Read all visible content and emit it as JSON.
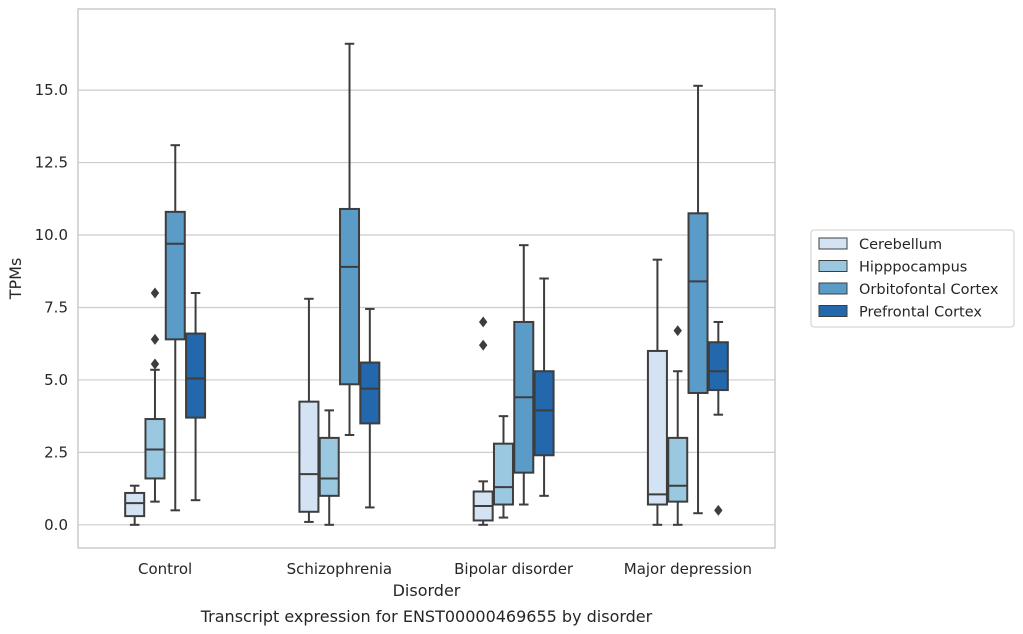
{
  "chart_data": {
    "type": "box",
    "caption": "Transcript expression for ENST00000469655 by disorder",
    "xlabel": "Disorder",
    "ylabel": "TPMs",
    "ylim": [
      -0.8,
      17.8
    ],
    "yticks": [
      0.0,
      2.5,
      5.0,
      7.5,
      10.0,
      12.5,
      15.0
    ],
    "ytick_labels": [
      "0.0",
      "2.5",
      "5.0",
      "7.5",
      "10.0",
      "12.5",
      "15.0"
    ],
    "grid": "horizontal",
    "legend_position": "right",
    "categories": [
      "Control",
      "Schizophrenia",
      "Bipolar disorder",
      "Major depression"
    ],
    "series": [
      {
        "name": "Cerebellum",
        "color": "#d3e3f3",
        "boxes": [
          {
            "whislo": 0.0,
            "q1": 0.3,
            "med": 0.75,
            "q3": 1.1,
            "whishi": 1.35,
            "fliers": []
          },
          {
            "whislo": 0.1,
            "q1": 0.45,
            "med": 1.75,
            "q3": 4.25,
            "whishi": 7.8,
            "fliers": []
          },
          {
            "whislo": 0.0,
            "q1": 0.15,
            "med": 0.65,
            "q3": 1.15,
            "whishi": 1.5,
            "fliers": [
              6.2,
              7.0
            ]
          },
          {
            "whislo": 0.0,
            "q1": 0.7,
            "med": 1.05,
            "q3": 6.0,
            "whishi": 9.15,
            "fliers": []
          }
        ]
      },
      {
        "name": "Hipppocampus",
        "color": "#9ac8e0",
        "boxes": [
          {
            "whislo": 0.8,
            "q1": 1.6,
            "med": 2.6,
            "q3": 3.65,
            "whishi": 5.35,
            "fliers": [
              5.55,
              6.4,
              8.0
            ]
          },
          {
            "whislo": 0.0,
            "q1": 1.0,
            "med": 1.6,
            "q3": 3.0,
            "whishi": 3.95,
            "fliers": []
          },
          {
            "whislo": 0.25,
            "q1": 0.7,
            "med": 1.3,
            "q3": 2.8,
            "whishi": 3.75,
            "fliers": []
          },
          {
            "whislo": 0.0,
            "q1": 0.8,
            "med": 1.35,
            "q3": 3.0,
            "whishi": 5.3,
            "fliers": [
              6.7
            ]
          }
        ]
      },
      {
        "name": "Orbitofontal Cortex",
        "color": "#5a9bc8",
        "boxes": [
          {
            "whislo": 0.5,
            "q1": 6.4,
            "med": 9.7,
            "q3": 10.8,
            "whishi": 13.1,
            "fliers": []
          },
          {
            "whislo": 3.1,
            "q1": 4.85,
            "med": 8.9,
            "q3": 10.9,
            "whishi": 16.6,
            "fliers": []
          },
          {
            "whislo": 0.7,
            "q1": 1.8,
            "med": 4.4,
            "q3": 7.0,
            "whishi": 9.65,
            "fliers": []
          },
          {
            "whislo": 0.4,
            "q1": 4.55,
            "med": 8.4,
            "q3": 10.75,
            "whishi": 15.15,
            "fliers": []
          }
        ]
      },
      {
        "name": "Prefrontal Cortex",
        "color": "#2367ad",
        "boxes": [
          {
            "whislo": 0.85,
            "q1": 3.7,
            "med": 5.05,
            "q3": 6.6,
            "whishi": 8.0,
            "fliers": []
          },
          {
            "whislo": 0.6,
            "q1": 3.5,
            "med": 4.7,
            "q3": 5.6,
            "whishi": 7.45,
            "fliers": []
          },
          {
            "whislo": 1.0,
            "q1": 2.4,
            "med": 3.95,
            "q3": 5.3,
            "whishi": 8.5,
            "fliers": []
          },
          {
            "whislo": 3.8,
            "q1": 4.65,
            "med": 5.3,
            "q3": 6.3,
            "whishi": 7.0,
            "fliers": [
              0.5
            ]
          }
        ]
      }
    ]
  }
}
